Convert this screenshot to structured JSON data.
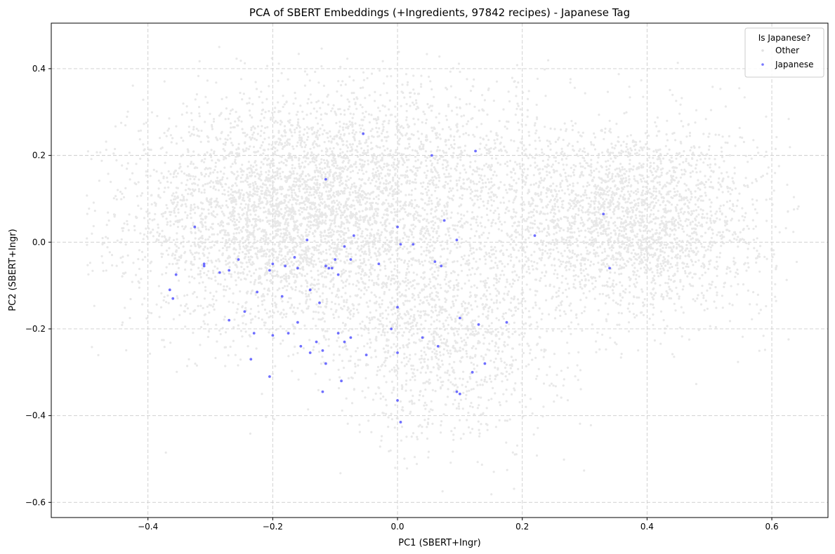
{
  "chart_data": {
    "type": "scatter",
    "title": "PCA of SBERT Embeddings (+Ingredients, 97842 recipes) - Japanese Tag",
    "xlabel": "PC1 (SBERT+Ingr)",
    "ylabel": "PC2 (SBERT+Ingr)",
    "xlim": [
      -0.555,
      0.69
    ],
    "ylim": [
      -0.635,
      0.505
    ],
    "xticks": [
      -0.4,
      -0.2,
      0.0,
      0.2,
      0.4,
      0.6
    ],
    "xtick_labels": [
      "−0.4",
      "−0.2",
      "0.0",
      "0.2",
      "0.4",
      "0.6"
    ],
    "yticks": [
      -0.6,
      -0.4,
      -0.2,
      0.0,
      0.2,
      0.4
    ],
    "ytick_labels": [
      "−0.6",
      "−0.4",
      "−0.2",
      "0.0",
      "0.2",
      "0.4"
    ],
    "grid": true,
    "legend": {
      "title": "Is Japanese?",
      "placement": "top-right",
      "entries": [
        "Other",
        "Japanese"
      ]
    },
    "colors": {
      "Other": "#e0e0e0",
      "Japanese": "#4b4bff"
    },
    "series": [
      {
        "name": "Other",
        "description_of_density": "approx 97.7k points, dense cloud spanning PC1 -0.5..0.65, PC2 -0.6..0.45",
        "clusters": [
          {
            "cx": -0.17,
            "cy": 0.06,
            "sx": 0.13,
            "sy": 0.13,
            "weight": 0.45
          },
          {
            "cx": 0.37,
            "cy": 0.05,
            "sx": 0.11,
            "sy": 0.11,
            "weight": 0.3
          },
          {
            "cx": 0.08,
            "cy": -0.2,
            "sx": 0.09,
            "sy": 0.13,
            "weight": 0.15
          },
          {
            "cx": 0.05,
            "cy": 0.18,
            "sx": 0.12,
            "sy": 0.1,
            "weight": 0.1
          }
        ]
      },
      {
        "name": "Japanese",
        "points": [
          [
            -0.055,
            0.25
          ],
          [
            0.055,
            0.2
          ],
          [
            0.125,
            0.21
          ],
          [
            -0.115,
            0.145
          ],
          [
            -0.325,
            0.035
          ],
          [
            -0.365,
            -0.11
          ],
          [
            -0.36,
            -0.13
          ],
          [
            -0.355,
            -0.075
          ],
          [
            -0.31,
            -0.05
          ],
          [
            -0.31,
            -0.055
          ],
          [
            -0.285,
            -0.07
          ],
          [
            -0.27,
            -0.065
          ],
          [
            -0.255,
            -0.04
          ],
          [
            -0.225,
            -0.115
          ],
          [
            -0.205,
            -0.065
          ],
          [
            -0.2,
            -0.05
          ],
          [
            -0.18,
            -0.055
          ],
          [
            -0.165,
            -0.035
          ],
          [
            -0.16,
            -0.06
          ],
          [
            -0.14,
            -0.11
          ],
          [
            -0.125,
            -0.14
          ],
          [
            -0.115,
            -0.055
          ],
          [
            -0.11,
            -0.06
          ],
          [
            -0.105,
            -0.06
          ],
          [
            -0.1,
            -0.04
          ],
          [
            -0.095,
            -0.075
          ],
          [
            -0.075,
            -0.04
          ],
          [
            -0.07,
            0.015
          ],
          [
            -0.03,
            -0.05
          ],
          [
            0.005,
            -0.005
          ],
          [
            0.025,
            -0.005
          ],
          [
            0.06,
            -0.045
          ],
          [
            0.07,
            -0.055
          ],
          [
            0.075,
            0.05
          ],
          [
            0.095,
            0.005
          ],
          [
            -0.155,
            -0.24
          ],
          [
            -0.14,
            -0.255
          ],
          [
            -0.13,
            -0.23
          ],
          [
            -0.12,
            -0.25
          ],
          [
            -0.115,
            -0.28
          ],
          [
            -0.095,
            -0.21
          ],
          [
            -0.085,
            -0.23
          ],
          [
            -0.075,
            -0.22
          ],
          [
            -0.05,
            -0.26
          ],
          [
            -0.01,
            -0.2
          ],
          [
            0.0,
            -0.255
          ],
          [
            0.0,
            -0.365
          ],
          [
            0.005,
            -0.415
          ],
          [
            -0.09,
            -0.32
          ],
          [
            -0.205,
            -0.31
          ],
          [
            -0.235,
            -0.27
          ],
          [
            -0.12,
            -0.345
          ],
          [
            0.12,
            -0.3
          ],
          [
            0.14,
            -0.28
          ],
          [
            0.1,
            -0.35
          ],
          [
            0.095,
            -0.345
          ],
          [
            0.1,
            -0.175
          ],
          [
            0.13,
            -0.19
          ],
          [
            0.175,
            -0.185
          ],
          [
            0.22,
            0.015
          ],
          [
            0.33,
            0.065
          ],
          [
            0.34,
            -0.06
          ],
          [
            -0.245,
            -0.16
          ],
          [
            -0.23,
            -0.21
          ],
          [
            -0.27,
            -0.18
          ],
          [
            -0.185,
            -0.125
          ],
          [
            -0.175,
            -0.21
          ],
          [
            -0.16,
            -0.185
          ],
          [
            -0.145,
            0.005
          ],
          [
            -0.085,
            -0.01
          ],
          [
            0.0,
            0.035
          ],
          [
            0.0,
            -0.15
          ],
          [
            0.04,
            -0.22
          ],
          [
            0.065,
            -0.24
          ],
          [
            -0.2,
            -0.215
          ]
        ]
      }
    ]
  }
}
